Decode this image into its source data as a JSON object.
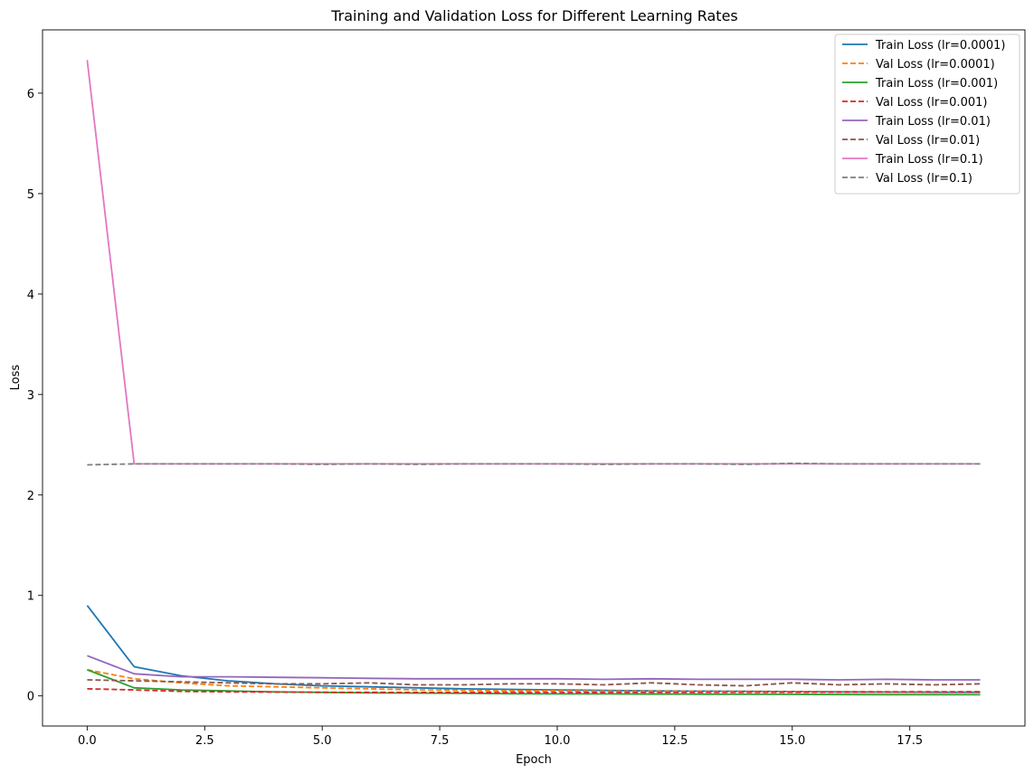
{
  "chart_data": {
    "type": "line",
    "title": "Training and Validation Loss for Different Learning Rates",
    "xlabel": "Epoch",
    "ylabel": "Loss",
    "xlim": [
      -0.95,
      19.95
    ],
    "ylim": [
      -0.3,
      6.63
    ],
    "xticks": [
      0.0,
      2.5,
      5.0,
      7.5,
      10.0,
      12.5,
      15.0,
      17.5
    ],
    "xtick_labels": [
      "0.0",
      "2.5",
      "5.0",
      "7.5",
      "10.0",
      "12.5",
      "15.0",
      "17.5"
    ],
    "yticks": [
      0,
      1,
      2,
      3,
      4,
      5,
      6
    ],
    "ytick_labels": [
      "0",
      "1",
      "2",
      "3",
      "4",
      "5",
      "6"
    ],
    "grid": false,
    "legend_position": "top-right",
    "x": [
      0,
      1,
      2,
      3,
      4,
      5,
      6,
      7,
      8,
      9,
      10,
      11,
      12,
      13,
      14,
      15,
      16,
      17,
      18,
      19
    ],
    "series": [
      {
        "name": "Train Loss (lr=0.0001)",
        "color": "#1f77b4",
        "dash": "solid",
        "values": [
          0.9,
          0.29,
          0.2,
          0.15,
          0.12,
          0.1,
          0.09,
          0.08,
          0.07,
          0.065,
          0.06,
          0.055,
          0.05,
          0.048,
          0.045,
          0.043,
          0.04,
          0.038,
          0.036,
          0.035
        ]
      },
      {
        "name": "Val Loss (lr=0.0001)",
        "color": "#ff7f0e",
        "dash": "dashed",
        "values": [
          0.26,
          0.17,
          0.13,
          0.1,
          0.09,
          0.08,
          0.07,
          0.06,
          0.055,
          0.05,
          0.05,
          0.048,
          0.045,
          0.045,
          0.044,
          0.043,
          0.043,
          0.042,
          0.042,
          0.042
        ]
      },
      {
        "name": "Train Loss (lr=0.001)",
        "color": "#2ca02c",
        "dash": "solid",
        "values": [
          0.26,
          0.08,
          0.06,
          0.05,
          0.04,
          0.035,
          0.03,
          0.028,
          0.025,
          0.022,
          0.02,
          0.02,
          0.018,
          0.017,
          0.016,
          0.015,
          0.014,
          0.013,
          0.013,
          0.012
        ]
      },
      {
        "name": "Val Loss (lr=0.001)",
        "color": "#d62728",
        "dash": "dashed",
        "values": [
          0.07,
          0.06,
          0.045,
          0.04,
          0.038,
          0.036,
          0.035,
          0.034,
          0.034,
          0.033,
          0.033,
          0.034,
          0.034,
          0.035,
          0.036,
          0.036,
          0.037,
          0.038,
          0.039,
          0.04
        ]
      },
      {
        "name": "Train Loss (lr=0.01)",
        "color": "#9467bd",
        "dash": "solid",
        "values": [
          0.4,
          0.22,
          0.19,
          0.19,
          0.185,
          0.18,
          0.175,
          0.17,
          0.17,
          0.17,
          0.17,
          0.165,
          0.17,
          0.165,
          0.165,
          0.165,
          0.16,
          0.165,
          0.16,
          0.16
        ]
      },
      {
        "name": "Val Loss (lr=0.01)",
        "color": "#8c564b",
        "dash": "dashed",
        "values": [
          0.16,
          0.15,
          0.14,
          0.13,
          0.12,
          0.12,
          0.13,
          0.11,
          0.11,
          0.12,
          0.12,
          0.11,
          0.13,
          0.11,
          0.1,
          0.13,
          0.11,
          0.12,
          0.11,
          0.12
        ]
      },
      {
        "name": "Train Loss (lr=0.1)",
        "color": "#e377c2",
        "dash": "solid",
        "values": [
          6.33,
          2.31,
          2.31,
          2.31,
          2.31,
          2.31,
          2.31,
          2.31,
          2.31,
          2.31,
          2.31,
          2.31,
          2.31,
          2.31,
          2.31,
          2.31,
          2.31,
          2.31,
          2.31,
          2.31
        ]
      },
      {
        "name": "Val Loss (lr=0.1)",
        "color": "#7f7f7f",
        "dash": "dashed",
        "values": [
          2.3,
          2.31,
          2.31,
          2.31,
          2.31,
          2.305,
          2.31,
          2.305,
          2.31,
          2.31,
          2.31,
          2.305,
          2.31,
          2.31,
          2.305,
          2.315,
          2.31,
          2.31,
          2.31,
          2.31
        ]
      }
    ]
  }
}
